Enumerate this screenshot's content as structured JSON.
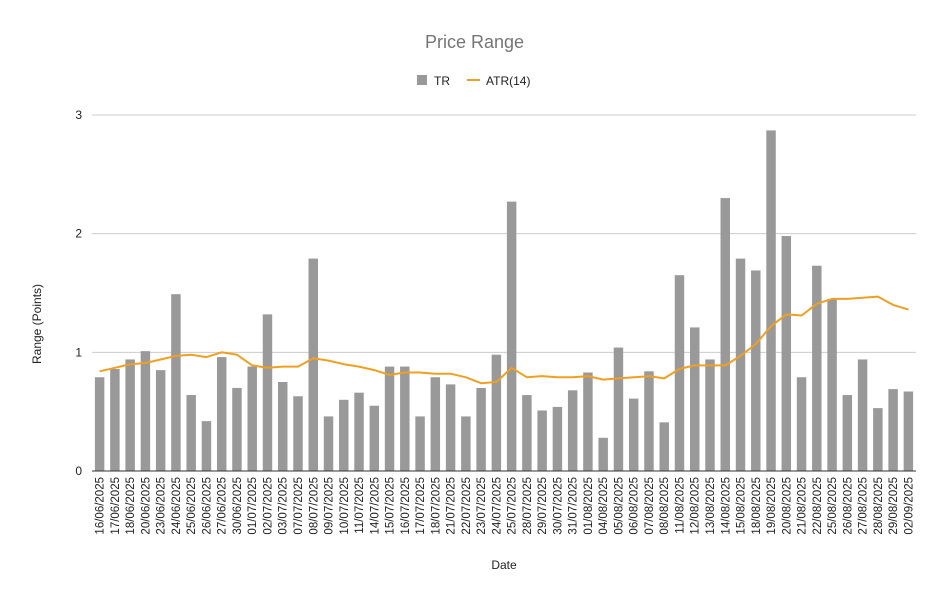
{
  "chart_data": {
    "type": "bar",
    "title": "Price Range",
    "xlabel": "Date",
    "ylabel": "Range (Points)",
    "ylim": [
      0,
      3
    ],
    "yticks": [
      0,
      1,
      2,
      3
    ],
    "grid": true,
    "legend_position": "top",
    "categories": [
      "16/06/2025",
      "17/06/2025",
      "18/06/2025",
      "20/06/2025",
      "23/06/2025",
      "24/06/2025",
      "25/06/2025",
      "26/06/2025",
      "27/06/2025",
      "30/06/2025",
      "01/07/2025",
      "02/07/2025",
      "03/07/2025",
      "07/07/2025",
      "08/07/2025",
      "09/07/2025",
      "10/07/2025",
      "11/07/2025",
      "14/07/2025",
      "15/07/2025",
      "16/07/2025",
      "17/07/2025",
      "18/07/2025",
      "21/07/2025",
      "22/07/2025",
      "23/07/2025",
      "24/07/2025",
      "25/07/2025",
      "28/07/2025",
      "29/07/2025",
      "30/07/2025",
      "31/07/2025",
      "01/08/2025",
      "04/08/2025",
      "05/08/2025",
      "06/08/2025",
      "07/08/2025",
      "08/08/2025",
      "11/08/2025",
      "12/08/2025",
      "13/08/2025",
      "14/08/2025",
      "15/08/2025",
      "18/08/2025",
      "19/08/2025",
      "20/08/2025",
      "21/08/2025",
      "22/08/2025",
      "25/08/2025",
      "26/08/2025",
      "27/08/2025",
      "28/08/2025",
      "29/08/2025",
      "02/09/2025"
    ],
    "series": [
      {
        "name": "TR",
        "type": "bar",
        "color": "#999999",
        "values": [
          0.79,
          0.86,
          0.94,
          1.01,
          0.85,
          1.49,
          0.64,
          0.42,
          0.96,
          0.7,
          0.88,
          1.32,
          0.75,
          0.63,
          1.79,
          0.46,
          0.6,
          0.66,
          0.55,
          0.88,
          0.88,
          0.46,
          0.79,
          0.73,
          0.46,
          0.7,
          0.98,
          2.27,
          0.64,
          0.51,
          0.54,
          0.68,
          0.83,
          0.28,
          1.04,
          0.61,
          0.84,
          0.41,
          1.65,
          1.21,
          0.94,
          2.3,
          1.79,
          1.69,
          2.87,
          1.98,
          0.79,
          1.73,
          1.45,
          0.64,
          0.94,
          0.53,
          0.69,
          0.67
        ]
      },
      {
        "name": "ATR(14)",
        "type": "line",
        "color": "#f0a020",
        "values": [
          0.84,
          0.87,
          0.9,
          0.91,
          0.94,
          0.97,
          0.98,
          0.96,
          1.0,
          0.98,
          0.89,
          0.87,
          0.88,
          0.88,
          0.95,
          0.93,
          0.9,
          0.88,
          0.85,
          0.81,
          0.83,
          0.83,
          0.82,
          0.82,
          0.79,
          0.74,
          0.75,
          0.87,
          0.79,
          0.8,
          0.79,
          0.79,
          0.8,
          0.77,
          0.78,
          0.79,
          0.8,
          0.78,
          0.86,
          0.89,
          0.89,
          0.89,
          0.97,
          1.07,
          1.22,
          1.32,
          1.31,
          1.41,
          1.45,
          1.45,
          1.46,
          1.47,
          1.4,
          1.36
        ]
      }
    ]
  }
}
